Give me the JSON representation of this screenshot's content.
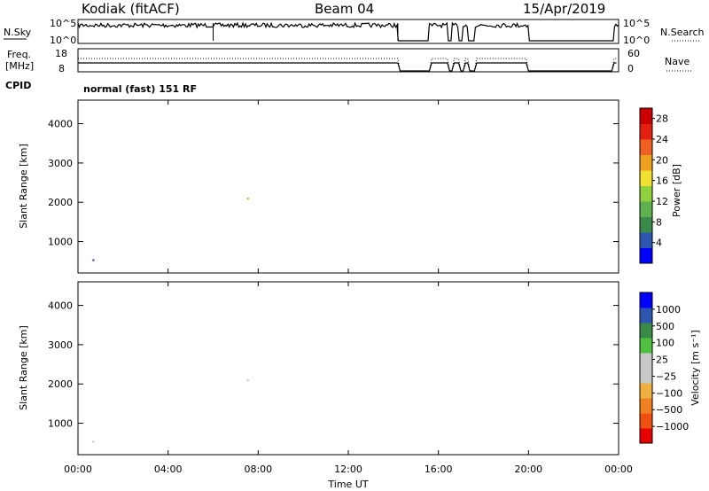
{
  "header": {
    "station": "Kodiak (fitACF)",
    "beam": "Beam 04",
    "date": "15/Apr/2019"
  },
  "top_panels": {
    "nsky_label": "N.Sky",
    "nsky_ticks": [
      "10^5",
      "10^0"
    ],
    "nsearch_label": "N.Search",
    "nsearch_ticks": [
      "10^5",
      "10^0"
    ],
    "freq_label": "Freq.",
    "freq_unit": "[MHz]",
    "freq_ticks": [
      "18",
      "8"
    ],
    "nave_label": "Nave",
    "nave_ticks": [
      "60",
      "0"
    ],
    "cpid_label": "CPID",
    "cpid_value": "normal (fast) 151 RF"
  },
  "colors": {
    "power": [
      "#0000ff",
      "#2d56b0",
      "#3a8a4a",
      "#5fb14e",
      "#8fd03c",
      "#f0e030",
      "#f0a020",
      "#f06020",
      "#e62010",
      "#cc0000"
    ],
    "velocity": [
      "#e60000",
      "#f05010",
      "#f08020",
      "#f0b040",
      "#c8c8c8",
      "#c8c8c8",
      "#50c040",
      "#3a8a4a",
      "#2d56b0",
      "#0000ff"
    ]
  },
  "chart_data": [
    {
      "type": "heatmap",
      "quantity": "power",
      "ylabel": "Slant Range [km]",
      "yticks": [
        "4000",
        "3000",
        "2000",
        "1000"
      ],
      "ylim": [
        200,
        4600
      ],
      "xticks": [
        "00:00",
        "04:00",
        "08:00",
        "12:00",
        "16:00",
        "20:00",
        "00:00"
      ],
      "xlim": [
        0,
        24
      ],
      "colorbar_label": "Power [dB]",
      "colorbar_ticks": [
        "28",
        "24",
        "20",
        "16",
        "12",
        "8",
        "4"
      ],
      "colorbar_range": [
        0,
        30
      ]
    },
    {
      "type": "heatmap",
      "quantity": "velocity",
      "ylabel": "Slant Range [km]",
      "yticks": [
        "4000",
        "3000",
        "2000",
        "1000"
      ],
      "ylim": [
        200,
        4600
      ],
      "xticks": [
        "00:00",
        "04:00",
        "08:00",
        "12:00",
        "16:00",
        "20:00",
        "00:00"
      ],
      "xlabel": "Time UT",
      "xlim": [
        0,
        24
      ],
      "colorbar_label": "Velocity [m s⁻¹]",
      "colorbar_ticks": [
        "1000",
        "500",
        "100",
        "25",
        "−25",
        "−100",
        "−500",
        "−1000"
      ]
    }
  ]
}
